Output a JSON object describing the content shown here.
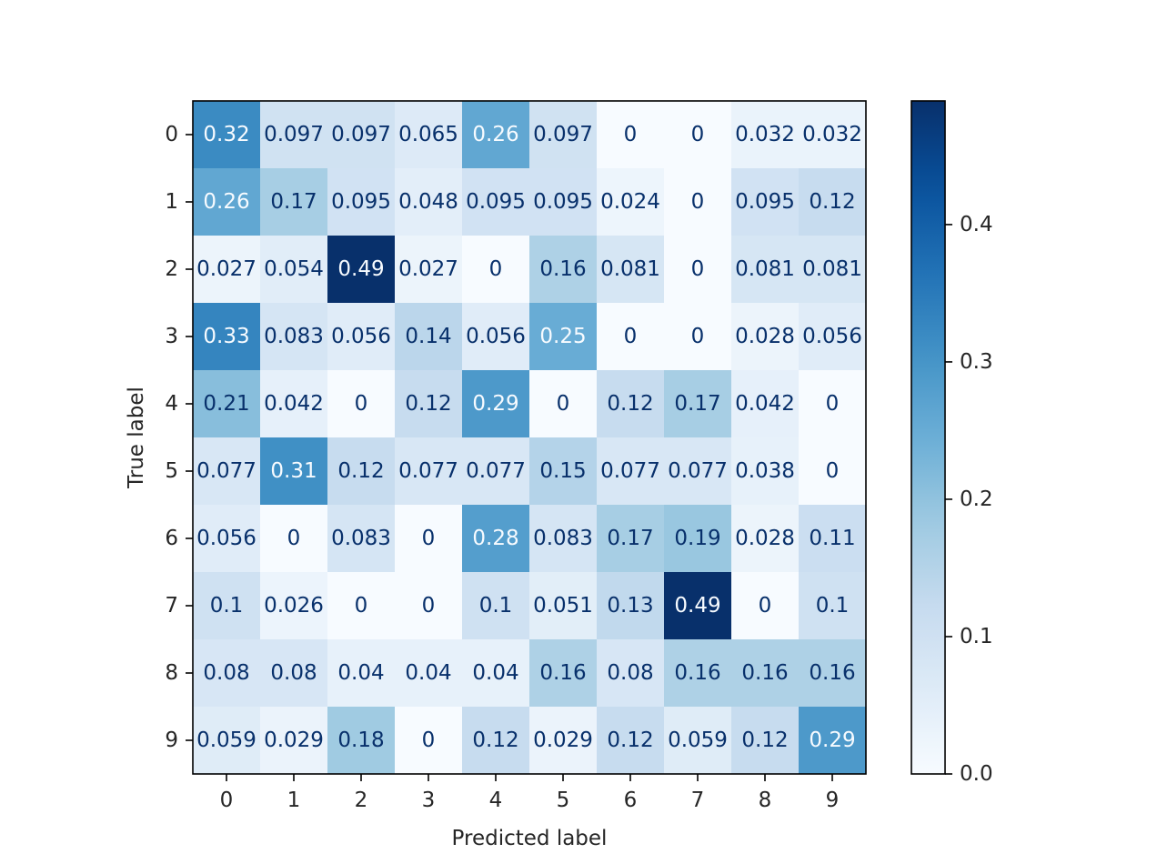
{
  "chart_data": {
    "type": "heatmap",
    "title": "",
    "xlabel": "Predicted label",
    "ylabel": "True label",
    "x_categories": [
      "0",
      "1",
      "2",
      "3",
      "4",
      "5",
      "6",
      "7",
      "8",
      "9"
    ],
    "y_categories": [
      "0",
      "1",
      "2",
      "3",
      "4",
      "5",
      "6",
      "7",
      "8",
      "9"
    ],
    "values": [
      [
        0.32,
        0.097,
        0.097,
        0.065,
        0.26,
        0.097,
        0,
        0,
        0.032,
        0.032
      ],
      [
        0.26,
        0.17,
        0.095,
        0.048,
        0.095,
        0.095,
        0.024,
        0,
        0.095,
        0.12
      ],
      [
        0.027,
        0.054,
        0.49,
        0.027,
        0,
        0.16,
        0.081,
        0,
        0.081,
        0.081
      ],
      [
        0.33,
        0.083,
        0.056,
        0.14,
        0.056,
        0.25,
        0,
        0,
        0.028,
        0.056
      ],
      [
        0.21,
        0.042,
        0,
        0.12,
        0.29,
        0,
        0.12,
        0.17,
        0.042,
        0
      ],
      [
        0.077,
        0.31,
        0.12,
        0.077,
        0.077,
        0.15,
        0.077,
        0.077,
        0.038,
        0
      ],
      [
        0.056,
        0,
        0.083,
        0,
        0.28,
        0.083,
        0.17,
        0.19,
        0.028,
        0.11
      ],
      [
        0.1,
        0.026,
        0,
        0,
        0.1,
        0.051,
        0.13,
        0.49,
        0,
        0.1
      ],
      [
        0.08,
        0.08,
        0.04,
        0.04,
        0.04,
        0.16,
        0.08,
        0.16,
        0.16,
        0.16
      ],
      [
        0.059,
        0.029,
        0.18,
        0,
        0.12,
        0.029,
        0.12,
        0.059,
        0.12,
        0.29
      ]
    ],
    "colormap": "Blues",
    "color_range": [
      0,
      0.49
    ],
    "colorbar": {
      "ticks": [
        0.0,
        0.1,
        0.2,
        0.3,
        0.4
      ],
      "tick_labels": [
        "0.0",
        "0.1",
        "0.2",
        "0.3",
        "0.4"
      ]
    },
    "grid": false
  },
  "colors": {
    "text_dark": "#08306b",
    "text_light": "#f7fbff",
    "axis": "#000000",
    "tick_text": "#262626"
  }
}
